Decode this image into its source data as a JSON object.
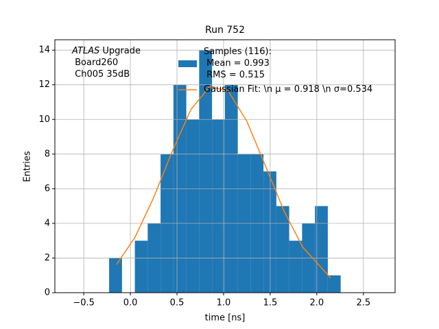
{
  "chart_data": {
    "type": "histogram",
    "title": "Run 752",
    "x_label": "time [ns]",
    "y_label": "Entries",
    "bins": [
      -0.228,
      -0.09,
      0.048,
      0.186,
      0.324,
      0.462,
      0.6,
      0.738,
      0.876,
      1.014,
      1.152,
      1.29,
      1.428,
      1.566,
      1.704,
      1.842,
      1.98,
      2.118,
      2.256
    ],
    "series": [
      {
        "name": "Samples (116):\n Mean = 0.993\n RMS = 0.515",
        "color": "#1f77b4",
        "values": [
          2,
          0,
          3,
          4,
          8,
          12,
          10,
          14,
          10,
          12,
          8,
          8,
          7,
          5,
          3,
          4,
          5,
          1
        ]
      },
      {
        "name": "Gaussian Fit: \\n μ = 0.918 \\n σ=0.534",
        "color": "#ff7f0e",
        "type": "line",
        "x": [
          -0.15,
          0.05,
          0.25,
          0.45,
          0.65,
          0.85,
          1.05,
          1.25,
          1.45,
          1.65,
          1.85,
          2.15
        ],
        "values": [
          1.62,
          3.2,
          5.49,
          8.17,
          10.58,
          11.9,
          11.64,
          9.89,
          7.31,
          4.69,
          2.62,
          0.84
        ]
      }
    ],
    "annotation": {
      "emphasis": "ATLAS",
      "text": " Upgrade\n Board260\n Ch005 35dB"
    },
    "xlim": [
      -0.81,
      2.84
    ],
    "ylim": [
      0,
      14.6
    ],
    "xticks": [
      {
        "value": -0.5,
        "label": "−0.5"
      },
      {
        "value": 0,
        "label": "0.0"
      },
      {
        "value": 0.5,
        "label": "0.5"
      },
      {
        "value": 1,
        "label": "1.0"
      },
      {
        "value": 1.5,
        "label": "1.5"
      },
      {
        "value": 2,
        "label": "2.0"
      },
      {
        "value": 2.5,
        "label": "2.5"
      }
    ],
    "yticks": [
      0,
      2,
      4,
      6,
      8,
      10,
      12,
      14
    ],
    "grid": true
  }
}
